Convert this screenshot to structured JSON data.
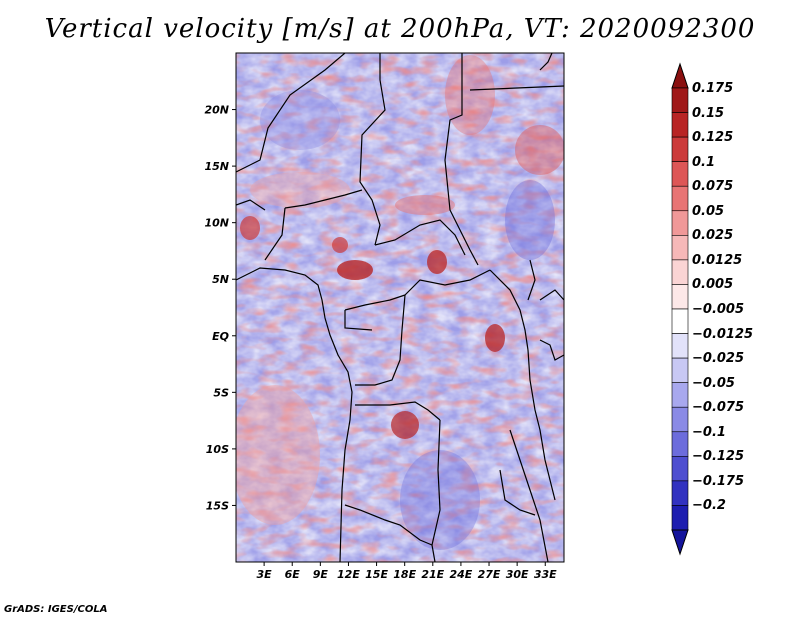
{
  "title": "Vertical velocity [m/s] at 200hPa, VT: 2020092300",
  "credit": "GrADS: IGES/COLA",
  "map": {
    "lon_range": [
      0,
      35
    ],
    "lat_range": [
      -20,
      25
    ],
    "lat_ticks": [
      {
        "value": 20,
        "label": "20N"
      },
      {
        "value": 15,
        "label": "15N"
      },
      {
        "value": 10,
        "label": "10N"
      },
      {
        "value": 5,
        "label": "5N"
      },
      {
        "value": 0,
        "label": "EQ"
      },
      {
        "value": -5,
        "label": "5S"
      },
      {
        "value": -10,
        "label": "10S"
      },
      {
        "value": -15,
        "label": "15S"
      }
    ],
    "lon_ticks": [
      {
        "value": 3,
        "label": "3E"
      },
      {
        "value": 6,
        "label": "6E"
      },
      {
        "value": 9,
        "label": "9E"
      },
      {
        "value": 12,
        "label": "12E"
      },
      {
        "value": 15,
        "label": "15E"
      },
      {
        "value": 18,
        "label": "18E"
      },
      {
        "value": 21,
        "label": "21E"
      },
      {
        "value": 24,
        "label": "24E"
      },
      {
        "value": 27,
        "label": "27E"
      },
      {
        "value": 30,
        "label": "30E"
      },
      {
        "value": 33,
        "label": "33E"
      }
    ]
  },
  "colorbar": {
    "levels": [
      {
        "label": "0.175",
        "color": "#a01818"
      },
      {
        "label": "0.15",
        "color": "#b82424"
      },
      {
        "label": "0.125",
        "color": "#cc3a3a"
      },
      {
        "label": "0.1",
        "color": "#dd5656"
      },
      {
        "label": "0.075",
        "color": "#e87474"
      },
      {
        "label": "0.05",
        "color": "#f09898"
      },
      {
        "label": "0.025",
        "color": "#f6b8b8"
      },
      {
        "label": "0.0125",
        "color": "#fad4d4"
      },
      {
        "label": "0.005",
        "color": "#fde8e8"
      },
      {
        "label": "−0.005",
        "color": "#ffffff"
      },
      {
        "label": "−0.0125",
        "color": "#e2e2fa"
      },
      {
        "label": "−0.025",
        "color": "#c8c8f4"
      },
      {
        "label": "−0.05",
        "color": "#a8a8ee"
      },
      {
        "label": "−0.075",
        "color": "#8a8ae6"
      },
      {
        "label": "−0.1",
        "color": "#6c6cdc"
      },
      {
        "label": "−0.125",
        "color": "#4e4ed0"
      },
      {
        "label": "−0.175",
        "color": "#3232c0"
      },
      {
        "label": "−0.2",
        "color": "#1e1eb0"
      }
    ],
    "top_arrow_color": "#8a1010",
    "bottom_arrow_color": "#14149c"
  }
}
